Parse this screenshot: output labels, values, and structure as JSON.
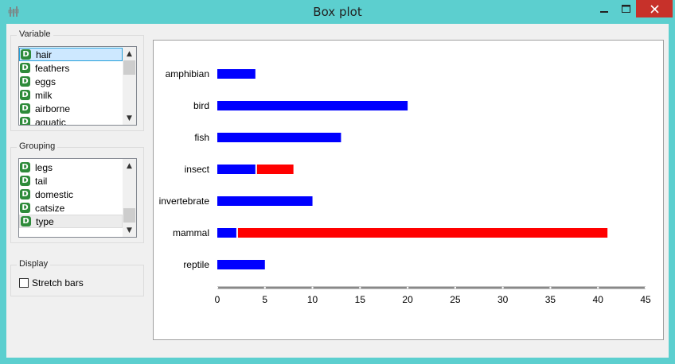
{
  "window": {
    "title": "Box plot",
    "icons": {
      "app": "boxplot-icon",
      "minimize": "minimize-icon",
      "maximize": "maximize-icon",
      "close": "close-icon"
    },
    "colors": {
      "frame": "#5ccfcf",
      "close": "#c7312a"
    }
  },
  "variable_box": {
    "title": "Variable",
    "items": [
      {
        "badge": "D",
        "label": "hair",
        "selected": true
      },
      {
        "badge": "D",
        "label": "feathers"
      },
      {
        "badge": "D",
        "label": "eggs"
      },
      {
        "badge": "D",
        "label": "milk"
      },
      {
        "badge": "D",
        "label": "airborne"
      },
      {
        "badge": "D",
        "label": "aquatic"
      }
    ]
  },
  "grouping_box": {
    "title": "Grouping",
    "items": [
      {
        "badge": "D",
        "label": "legs"
      },
      {
        "badge": "D",
        "label": "tail"
      },
      {
        "badge": "D",
        "label": "domestic"
      },
      {
        "badge": "D",
        "label": "catsize"
      },
      {
        "badge": "D",
        "label": "type",
        "selected": true
      }
    ]
  },
  "display_box": {
    "title": "Display",
    "stretch_bars": {
      "label": "Stretch bars",
      "checked": false
    }
  },
  "chart_data": {
    "type": "bar",
    "orientation": "horizontal",
    "stacked": true,
    "categories": [
      "amphibian",
      "bird",
      "fish",
      "insect",
      "invertebrate",
      "mammal",
      "reptile"
    ],
    "series": [
      {
        "color": "#0000ff",
        "values": [
          4,
          20,
          13,
          4,
          10,
          2,
          5
        ]
      },
      {
        "color": "#ff0000",
        "values": [
          0,
          0,
          0,
          4,
          0,
          39,
          0
        ]
      }
    ],
    "xlim": [
      0,
      45
    ],
    "xticks": [
      0,
      5,
      10,
      15,
      20,
      25,
      30,
      35,
      40,
      45
    ]
  }
}
